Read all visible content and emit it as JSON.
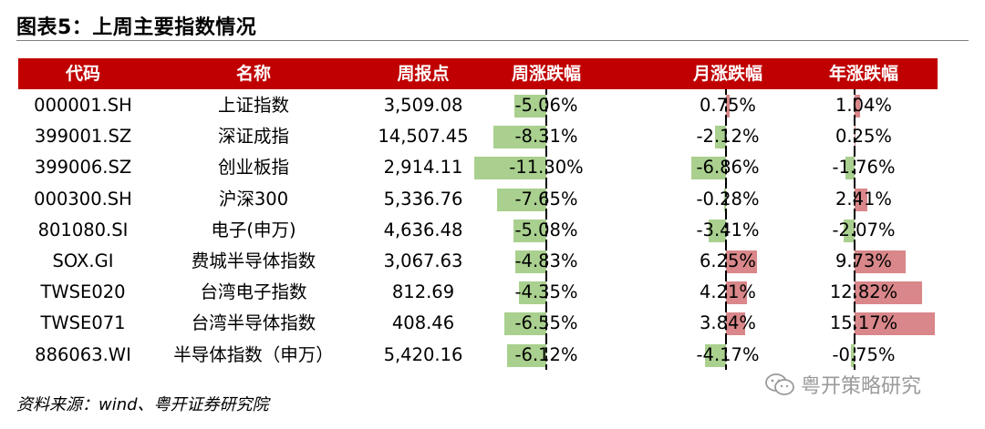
{
  "figure": {
    "title": "图表5：上周主要指数情况",
    "source": "资料来源：wind、粤开证券研究院",
    "watermark": "粤开策略研究",
    "watermark_icon": "wechat-icon"
  },
  "colors": {
    "header_bg": "#c00000",
    "header_text": "#ffffff",
    "negative_bar": "#a9d08e",
    "positive_bar": "#d9878a"
  },
  "chart_data": {
    "type": "table",
    "columns": [
      "代码",
      "名称",
      "周报点",
      "周涨跌幅",
      "月涨跌幅",
      "年涨跌幅"
    ],
    "rows": [
      {
        "code": "000001.SH",
        "name": "上证指数",
        "close": "3,509.08",
        "week": -5.06,
        "month": 0.75,
        "year": 1.04,
        "week_label": "-5.06%",
        "month_label": "0.75%",
        "year_label": "1.04%"
      },
      {
        "code": "399001.SZ",
        "name": "深证成指",
        "close": "14,507.45",
        "week": -8.31,
        "month": -2.12,
        "year": 0.25,
        "week_label": "-8.31%",
        "month_label": "-2.12%",
        "year_label": "0.25%"
      },
      {
        "code": "399006.SZ",
        "name": "创业板指",
        "close": "2,914.11",
        "week": -11.3,
        "month": -6.86,
        "year": -1.76,
        "week_label": "-11.30%",
        "month_label": "-6.86%",
        "year_label": "-1.76%"
      },
      {
        "code": "000300.SH",
        "name": "沪深300",
        "close": "5,336.76",
        "week": -7.65,
        "month": -0.28,
        "year": 2.41,
        "week_label": "-7.65%",
        "month_label": "-0.28%",
        "year_label": "2.41%"
      },
      {
        "code": "801080.SI",
        "name": "电子(申万)",
        "close": "4,636.48",
        "week": -5.08,
        "month": -3.41,
        "year": -2.07,
        "week_label": "-5.08%",
        "month_label": "-3.41%",
        "year_label": "-2.07%"
      },
      {
        "code": "SOX.GI",
        "name": "费城半导体指数",
        "close": "3,067.63",
        "week": -4.83,
        "month": 6.25,
        "year": 9.73,
        "week_label": "-4.83%",
        "month_label": "6.25%",
        "year_label": "9.73%"
      },
      {
        "code": "TWSE020",
        "name": "台湾电子指数",
        "close": "812.69",
        "week": -4.35,
        "month": 4.21,
        "year": 12.82,
        "week_label": "-4.35%",
        "month_label": "4.21%",
        "year_label": "12.82%"
      },
      {
        "code": "TWSE071",
        "name": "台湾半导体指数",
        "close": "408.46",
        "week": -6.55,
        "month": 3.84,
        "year": 15.17,
        "week_label": "-6.55%",
        "month_label": "3.84%",
        "year_label": "15.17%"
      },
      {
        "code": "886063.WI",
        "name": "半导体指数（申万）",
        "close": "5,420.16",
        "week": -6.12,
        "month": -4.17,
        "year": -0.75,
        "week_label": "-6.12%",
        "month_label": "-4.17%",
        "year_label": "-0.75%"
      }
    ]
  }
}
